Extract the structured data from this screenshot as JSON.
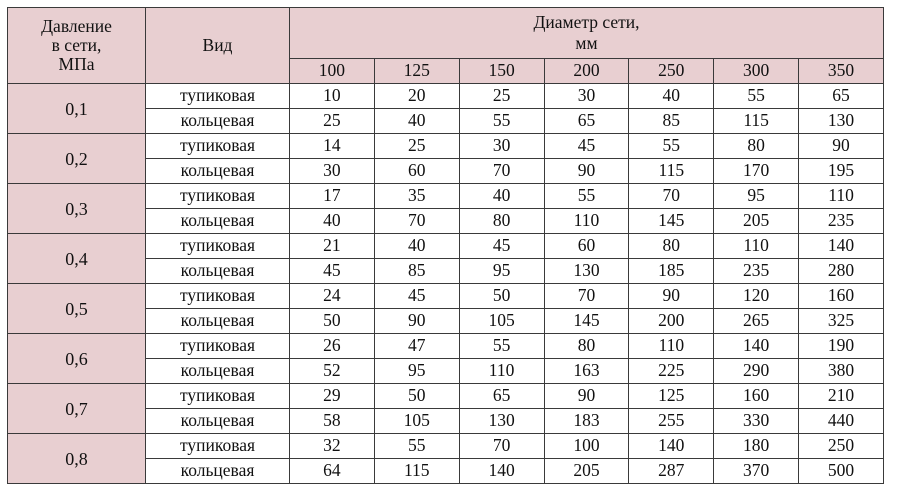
{
  "header": {
    "pressure_label_lines": [
      "Давление",
      "в сети,",
      "МПа"
    ],
    "kind_label": "Вид",
    "diameter_label_lines": [
      "Диаметр сети,",
      "мм"
    ]
  },
  "diameters": [
    "100",
    "125",
    "150",
    "200",
    "250",
    "300",
    "350"
  ],
  "rows": [
    {
      "pressure": "0,1",
      "dead_end": {
        "label": "тупиковая",
        "values": [
          "10",
          "20",
          "25",
          "30",
          "40",
          "55",
          "65"
        ]
      },
      "ring": {
        "label": "кольцевая",
        "values": [
          "25",
          "40",
          "55",
          "65",
          "85",
          "115",
          "130"
        ]
      }
    },
    {
      "pressure": "0,2",
      "dead_end": {
        "label": "тупиковая",
        "values": [
          "14",
          "25",
          "30",
          "45",
          "55",
          "80",
          "90"
        ]
      },
      "ring": {
        "label": "кольцевая",
        "values": [
          "30",
          "60",
          "70",
          "90",
          "115",
          "170",
          "195"
        ]
      }
    },
    {
      "pressure": "0,3",
      "dead_end": {
        "label": "тупиковая",
        "values": [
          "17",
          "35",
          "40",
          "55",
          "70",
          "95",
          "110"
        ]
      },
      "ring": {
        "label": "кольцевая",
        "values": [
          "40",
          "70",
          "80",
          "110",
          "145",
          "205",
          "235"
        ]
      }
    },
    {
      "pressure": "0,4",
      "dead_end": {
        "label": "тупиковая",
        "values": [
          "21",
          "40",
          "45",
          "60",
          "80",
          "110",
          "140"
        ]
      },
      "ring": {
        "label": "кольцевая",
        "values": [
          "45",
          "85",
          "95",
          "130",
          "185",
          "235",
          "280"
        ]
      }
    },
    {
      "pressure": "0,5",
      "dead_end": {
        "label": "тупиковая",
        "values": [
          "24",
          "45",
          "50",
          "70",
          "90",
          "120",
          "160"
        ]
      },
      "ring": {
        "label": "кольцевая",
        "values": [
          "50",
          "90",
          "105",
          "145",
          "200",
          "265",
          "325"
        ]
      }
    },
    {
      "pressure": "0,6",
      "dead_end": {
        "label": "тупиковая",
        "values": [
          "26",
          "47",
          "55",
          "80",
          "110",
          "140",
          "190"
        ]
      },
      "ring": {
        "label": "кольцевая",
        "values": [
          "52",
          "95",
          "110",
          "163",
          "225",
          "290",
          "380"
        ]
      }
    },
    {
      "pressure": "0,7",
      "dead_end": {
        "label": "тупиковая",
        "values": [
          "29",
          "50",
          "65",
          "90",
          "125",
          "160",
          "210"
        ]
      },
      "ring": {
        "label": "кольцевая",
        "values": [
          "58",
          "105",
          "130",
          "183",
          "255",
          "330",
          "440"
        ]
      }
    },
    {
      "pressure": "0,8",
      "dead_end": {
        "label": "тупиковая",
        "values": [
          "32",
          "55",
          "70",
          "100",
          "140",
          "180",
          "250"
        ]
      },
      "ring": {
        "label": "кольцевая",
        "values": [
          "64",
          "115",
          "140",
          "205",
          "287",
          "370",
          "500"
        ]
      }
    }
  ],
  "colors": {
    "header_bg": "#e8cfd1",
    "border": "#3a3a3a",
    "text": "#111111"
  }
}
